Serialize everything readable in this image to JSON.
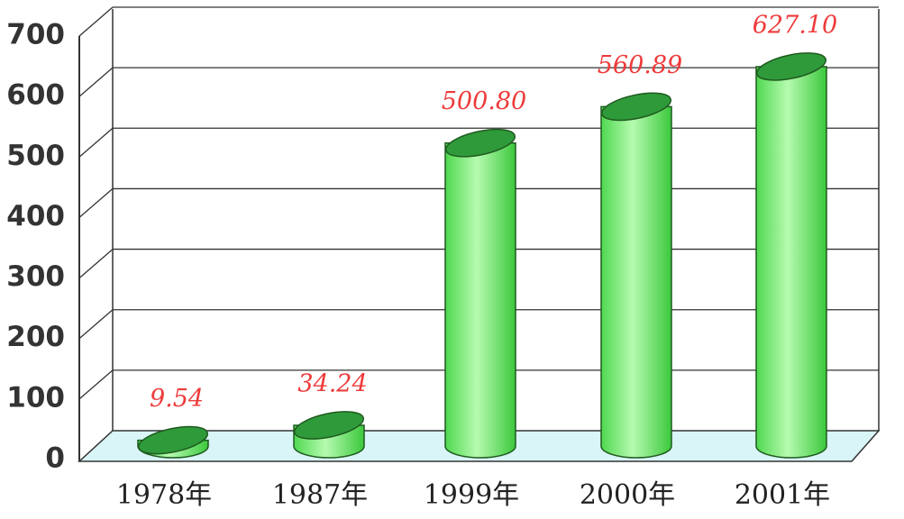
{
  "chart_data": {
    "type": "bar",
    "categories": [
      "1978年",
      "1987年",
      "1999年",
      "2000年",
      "2001年"
    ],
    "values": [
      9.54,
      34.24,
      500.8,
      560.89,
      627.1
    ],
    "value_labels": [
      "9.54",
      "34.24",
      "500.80",
      "560.89",
      "627.10"
    ],
    "color": "#3cc83c",
    "ylim": [
      0,
      700
    ],
    "yticks": [
      0,
      100,
      200,
      300,
      400,
      500,
      600,
      700
    ],
    "grid": true
  }
}
